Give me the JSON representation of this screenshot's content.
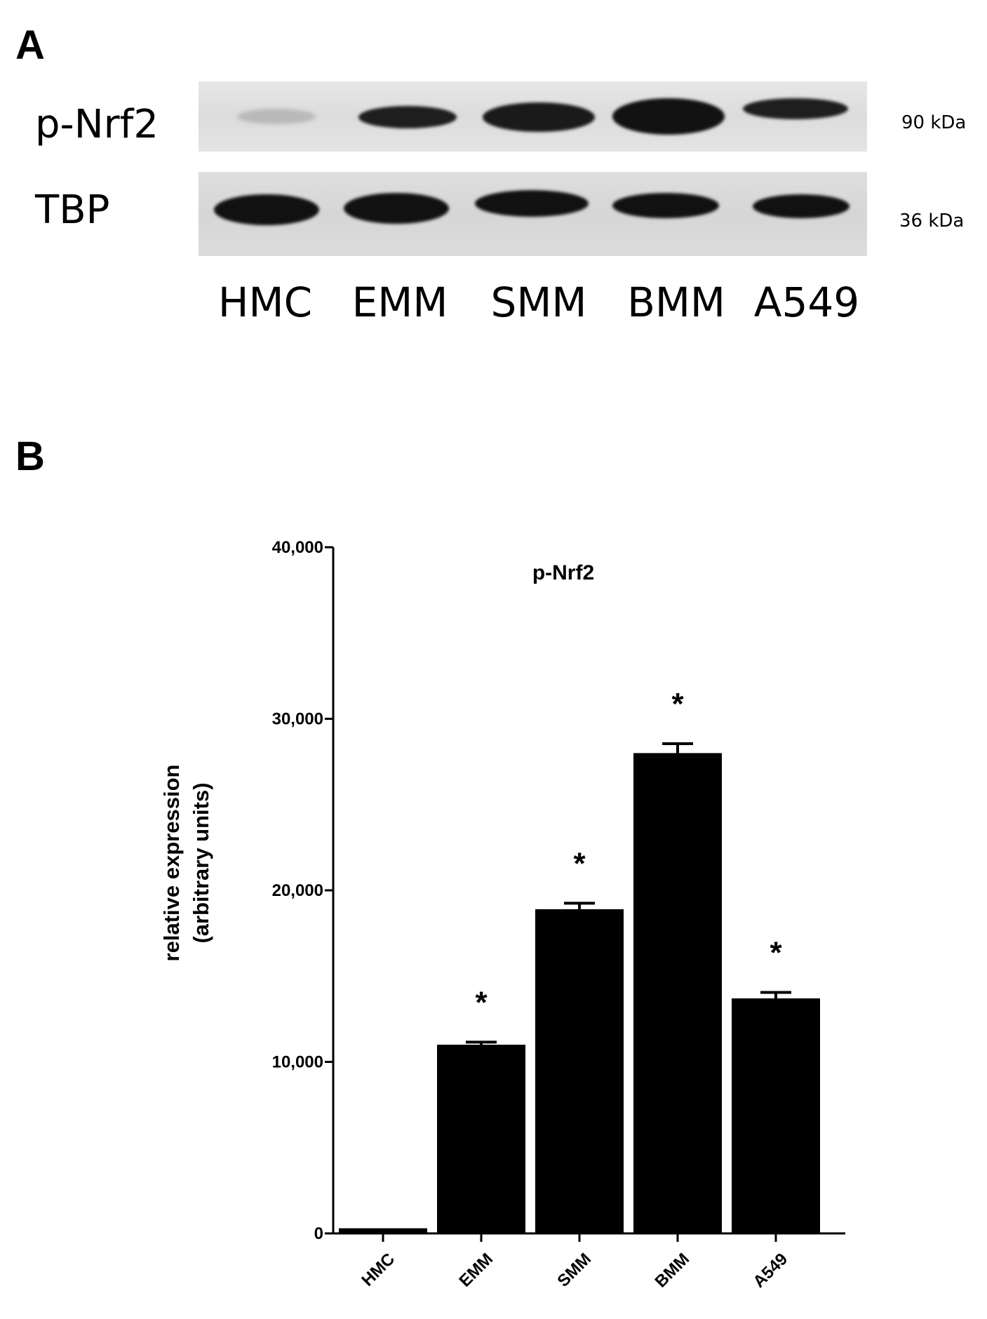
{
  "panels": {
    "a_label": "A",
    "b_label": "B"
  },
  "blot": {
    "rows": [
      {
        "label": "p-Nrf2",
        "mw": "90 kDa"
      },
      {
        "label": "TBP",
        "mw": "36 kDa"
      }
    ],
    "lanes": [
      "HMC",
      "EMM",
      "SMM",
      "BMM",
      "A549"
    ],
    "band_color": "#111111",
    "strip_color": "#e0e0e0"
  },
  "chart_data": {
    "type": "bar",
    "title": "p-Nrf2",
    "ylabel": [
      "relative expression",
      "(arbitrary units)"
    ],
    "xlabel": "",
    "categories": [
      "HMC",
      "EMM",
      "SMM",
      "BMM",
      "A549"
    ],
    "values": [
      300,
      11000,
      18900,
      28000,
      13700
    ],
    "errors": [
      0,
      150,
      350,
      550,
      350
    ],
    "annotations": [
      "",
      "*",
      "*",
      "*",
      "*"
    ],
    "ylim": [
      0,
      40000
    ],
    "yticks": [
      0,
      10000,
      20000,
      30000,
      40000
    ],
    "ytick_labels": [
      "0",
      "10,000",
      "20,000",
      "30,000",
      "40,000"
    ],
    "bar_color": "#000000",
    "grid": false
  }
}
